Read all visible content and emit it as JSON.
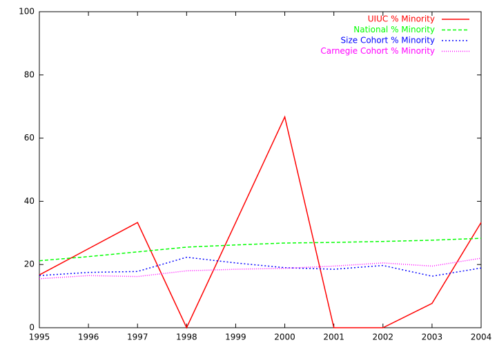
{
  "chart_data": {
    "type": "line",
    "x": [
      1995,
      1996,
      1997,
      1998,
      1999,
      2000,
      2001,
      2002,
      2003,
      2004
    ],
    "xlim": [
      1995,
      2004
    ],
    "xticks": [
      1995,
      1996,
      1997,
      1998,
      1999,
      2000,
      2001,
      2002,
      2003,
      2004
    ],
    "ylim": [
      0,
      100
    ],
    "yticks": [
      0,
      20,
      40,
      60,
      80,
      100
    ],
    "legend": "top-right",
    "series": [
      {
        "name": "UIUC % Minority",
        "color": "#ff0000",
        "dash": "solid",
        "values": [
          16.7,
          25,
          33.3,
          0,
          33.3,
          66.7,
          0,
          0,
          7.7,
          33.3
        ]
      },
      {
        "name": "National % Minority",
        "color": "#00ff00",
        "dash": "dashed",
        "values": [
          21.2,
          22.5,
          24,
          25.5,
          26.2,
          26.8,
          27,
          27.3,
          27.7,
          28.3
        ]
      },
      {
        "name": "Size Cohort % Minority",
        "color": "#0000ff",
        "dash": "dotted",
        "values": [
          16.5,
          17.5,
          17.8,
          22.3,
          20.5,
          19,
          18.5,
          19.7,
          16.3,
          18.9
        ]
      },
      {
        "name": "Carnegie Cohort % Minority",
        "color": "#ff00ff",
        "dash": "fine-dotted",
        "values": [
          15.5,
          16.5,
          16.2,
          18,
          18.5,
          18.8,
          19.5,
          20.5,
          19.5,
          22
        ]
      }
    ]
  }
}
